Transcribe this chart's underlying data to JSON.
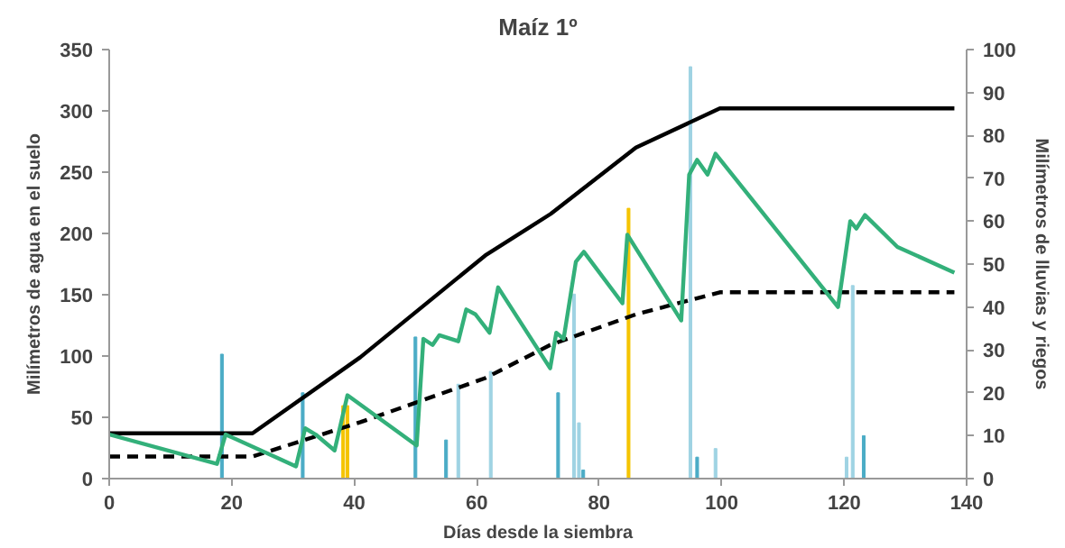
{
  "chart_data": {
    "type": "line",
    "title": "Maíz 1º",
    "xlabel": "Días desde la siembra",
    "ylabel": "Milímetros de agua en el suelo",
    "y2label": "Milímetros de lluvias y riegos",
    "xlim": [
      0,
      140
    ],
    "xticks": [
      0,
      20,
      40,
      60,
      80,
      100,
      120,
      140
    ],
    "ylim": [
      0,
      350
    ],
    "yticks": [
      0,
      50,
      100,
      150,
      200,
      250,
      300,
      350
    ],
    "y2lim": [
      0,
      100
    ],
    "y2ticks": [
      0,
      10,
      20,
      30,
      40,
      50,
      60,
      70,
      80,
      90,
      100
    ],
    "grid": false,
    "series": [
      {
        "type": "bar",
        "axis": "y2",
        "x": [
          18.4,
          31.6,
          38.2,
          38.9,
          50,
          55,
          57,
          62.3,
          73.3,
          75.9,
          76.7,
          77.4,
          84.8,
          94.9,
          96,
          99,
          120.4,
          121.4,
          123.2
        ],
        "values": [
          29,
          20,
          17,
          17,
          33,
          9,
          22,
          25,
          20,
          43,
          13,
          2,
          63,
          96,
          5,
          7,
          5,
          45,
          10
        ],
        "colors": [
          "#4bacc6",
          "#4bacc6",
          "#f5c400",
          "#f5c400",
          "#4bacc6",
          "#4bacc6",
          "#9fd3e3",
          "#9fd3e3",
          "#4bacc6",
          "#9fd3e3",
          "#9fd3e3",
          "#4bacc6",
          "#f5c400",
          "#9fd3e3",
          "#4bacc6",
          "#9fd3e3",
          "#9fd3e3",
          "#9fd3e3",
          "#4bacc6"
        ]
      },
      {
        "color": "#000000",
        "line_style": "solid",
        "x": [
          0,
          23.4,
          41,
          61.4,
          72.1,
          86,
          99.7,
          138
        ],
        "values": [
          37,
          37,
          99,
          182,
          216,
          270,
          302,
          302
        ]
      },
      {
        "color": "#000000",
        "line_style": "dashed",
        "x": [
          0,
          23.4,
          41,
          61.4,
          72,
          86,
          99.7,
          138
        ],
        "values": [
          18,
          18,
          46,
          82,
          109,
          134,
          152,
          152
        ]
      },
      {
        "color": "#33b07a",
        "line_style": "solid",
        "x": [
          0,
          17.6,
          19,
          30.5,
          32,
          33.7,
          36.8,
          38.9,
          50.2,
          51.3,
          52.8,
          53.9,
          57,
          58.3,
          59.8,
          62.1,
          63.5,
          72,
          73,
          74.2,
          76.2,
          77.5,
          83.8,
          84.6,
          93.4,
          94.7,
          96,
          97.7,
          99,
          119,
          121,
          122,
          123.4,
          128.7,
          138
        ],
        "values": [
          36,
          12,
          36,
          10,
          41,
          36,
          23,
          68,
          27,
          114,
          109,
          117,
          112,
          138,
          134,
          119,
          156,
          90,
          119,
          114,
          177,
          185,
          143,
          199,
          129,
          248,
          260,
          248,
          265,
          140,
          210,
          204,
          215,
          189,
          168
        ]
      }
    ]
  }
}
